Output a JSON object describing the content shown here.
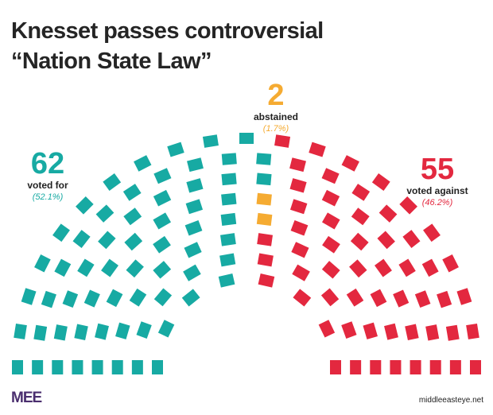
{
  "title": {
    "line1": "Knesset passes controversial",
    "line2": "“Nation State Law”"
  },
  "chart_data": {
    "type": "parliament",
    "title": "Knesset passes controversial “Nation State Law”",
    "total_seats": 119,
    "rows": 8,
    "series": [
      {
        "name": "voted for",
        "value": 62,
        "percent_label": "(52.1%)",
        "color": "#17aaa3"
      },
      {
        "name": "abstained",
        "value": 2,
        "percent_label": "(1.7%)",
        "color": "#f5ab32"
      },
      {
        "name": "voted against",
        "value": 55,
        "percent_label": "(46.2%)",
        "color": "#e3283f"
      }
    ]
  },
  "callouts": {
    "for": {
      "number": "62",
      "label": "voted for",
      "percent": "(52.1%)"
    },
    "abstained": {
      "number": "2",
      "label": "abstained",
      "percent": "(1.7%)"
    },
    "against": {
      "number": "55",
      "label": "voted against",
      "percent": "(46.2%)"
    }
  },
  "colors": {
    "for": "#17aaa3",
    "abstained": "#f5ab32",
    "against": "#e3283f",
    "brand": "#4a2e6e"
  },
  "footer": {
    "logo": "MEE",
    "url": "middleeasteye.net"
  }
}
